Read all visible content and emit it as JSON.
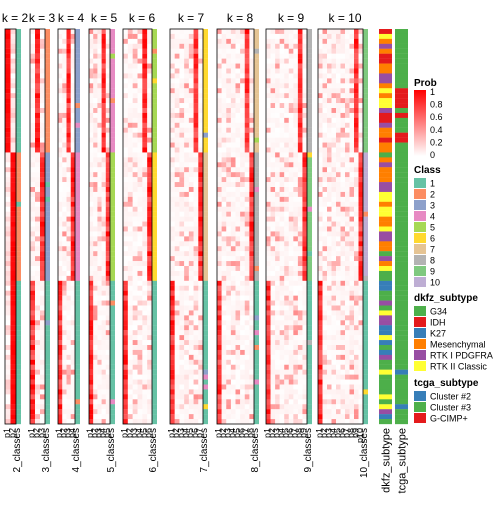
{
  "chart_data": {
    "type": "heatmap",
    "panels": [
      {
        "title": "k = 2",
        "k": 2,
        "row_labels": [
          "p1",
          "p2"
        ],
        "class_label": "2_classes"
      },
      {
        "title": "k = 3",
        "k": 3,
        "row_labels": [
          "p1",
          "p2",
          "p3"
        ],
        "class_label": "3_classes"
      },
      {
        "title": "k = 4",
        "k": 4,
        "row_labels": [
          "p1",
          "p2",
          "p3",
          "p4"
        ],
        "class_label": "4_classes"
      },
      {
        "title": "k = 5",
        "k": 5,
        "row_labels": [
          "p1",
          "p2",
          "p3",
          "p4",
          "p5"
        ],
        "class_label": "5_classes"
      },
      {
        "title": "k = 6",
        "k": 6,
        "row_labels": [
          "p1",
          "p2",
          "p3",
          "p4",
          "p5",
          "p6"
        ],
        "class_label": "6_classes"
      },
      {
        "title": "k = 7",
        "k": 7,
        "row_labels": [
          "p1",
          "p2",
          "p3",
          "p4",
          "p5",
          "p6",
          "p7"
        ],
        "class_label": "7_classes"
      },
      {
        "title": "k = 8",
        "k": 8,
        "row_labels": [
          "p1",
          "p2",
          "p3",
          "p4",
          "p5",
          "p6",
          "p7",
          "p8"
        ],
        "class_label": "8_classes"
      },
      {
        "title": "k = 9",
        "k": 9,
        "row_labels": [
          "p1",
          "p2",
          "p3",
          "p4",
          "p5",
          "p6",
          "p7",
          "p8",
          "p9"
        ],
        "class_label": "9_classes"
      },
      {
        "title": "k = 10",
        "k": 10,
        "row_labels": [
          "p1",
          "p2",
          "p3",
          "p4",
          "p5",
          "p6",
          "p7",
          "p8",
          "p9",
          "p10"
        ],
        "class_label": "10_classes"
      }
    ],
    "annotation_columns": [
      "dkfz_subtype",
      "tcga_subtype"
    ],
    "legends": [
      {
        "title": "Prob",
        "type": "gradient",
        "ticks": [
          "1",
          "0.8",
          "0.6",
          "0.4",
          "0.2",
          "0"
        ],
        "colors": [
          "#ff0000",
          "#ffffff"
        ]
      },
      {
        "title": "Class",
        "type": "discrete",
        "entries": [
          {
            "label": "1",
            "color": "#66c2a5"
          },
          {
            "label": "2",
            "color": "#fc8d62"
          },
          {
            "label": "3",
            "color": "#8da0cb"
          },
          {
            "label": "4",
            "color": "#e78ac3"
          },
          {
            "label": "5",
            "color": "#a6d854"
          },
          {
            "label": "6",
            "color": "#ffd92f"
          },
          {
            "label": "7",
            "color": "#e5c494"
          },
          {
            "label": "8",
            "color": "#b3b3b3"
          },
          {
            "label": "9",
            "color": "#7fc97f"
          },
          {
            "label": "10",
            "color": "#beaed4"
          }
        ]
      },
      {
        "title": "dkfz_subtype",
        "type": "discrete",
        "entries": [
          {
            "label": "G34",
            "color": "#4daf4a"
          },
          {
            "label": "IDH",
            "color": "#e41a1c"
          },
          {
            "label": "K27",
            "color": "#377eb8"
          },
          {
            "label": "Mesenchymal",
            "color": "#ff7f00"
          },
          {
            "label": "RTK I PDGFRA",
            "color": "#984ea3"
          },
          {
            "label": "RTK II Classic",
            "color": "#ffff33"
          }
        ]
      },
      {
        "title": "tcga_subtype",
        "type": "discrete",
        "entries": [
          {
            "label": "Cluster #2",
            "color": "#377eb8"
          },
          {
            "label": "Cluster #3",
            "color": "#4daf4a"
          },
          {
            "label": "G-CIMP+",
            "color": "#e41a1c"
          }
        ]
      }
    ]
  }
}
